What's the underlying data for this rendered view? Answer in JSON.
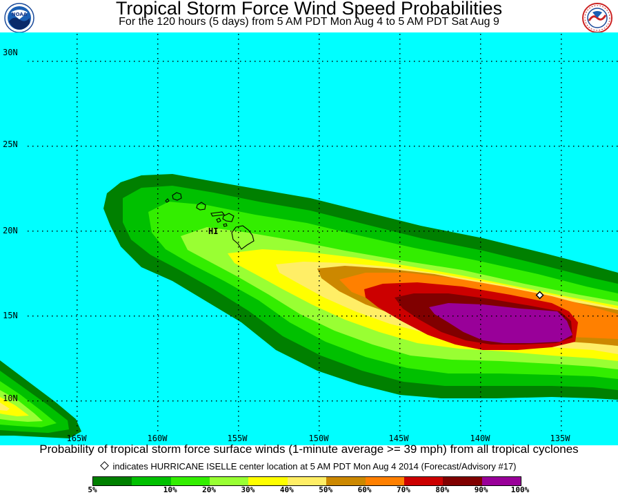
{
  "header": {
    "title": "Tropical Storm Force Wind Speed Probabilities",
    "subtitle": "For the 120 hours (5 days) from 5 AM PDT Mon Aug 4 to 5 AM PDT Sat Aug 9"
  },
  "logos": {
    "left": "noaa-logo",
    "right": "national-weather-service-logo"
  },
  "map": {
    "ocean_color": "#00ffff",
    "lat_labels": [
      "30N",
      "25N",
      "20N",
      "15N",
      "10N"
    ],
    "lon_labels": [
      "165W",
      "160W",
      "155W",
      "150W",
      "145W",
      "140W",
      "135W"
    ],
    "region_label": "HI",
    "storm_marker": {
      "lat": 16.2,
      "lon": -136.3
    }
  },
  "caption": "Probability of tropical storm force surface winds (1-minute average >= 39 mph) from all tropical cyclones",
  "note": "indicates HURRICANE ISELLE center location at 5 AM PDT Mon Aug 4 2014 (Forecast/Advisory #17)",
  "legend": {
    "colors": [
      "#008000",
      "#00c000",
      "#33ee00",
      "#99ff33",
      "#ffff00",
      "#ffee66",
      "#cc8800",
      "#ff8000",
      "#cc0000",
      "#800000",
      "#990099"
    ],
    "labels": [
      "5%",
      "10%",
      "20%",
      "30%",
      "40%",
      "50%",
      "60%",
      "70%",
      "80%",
      "90%",
      "100%"
    ]
  }
}
